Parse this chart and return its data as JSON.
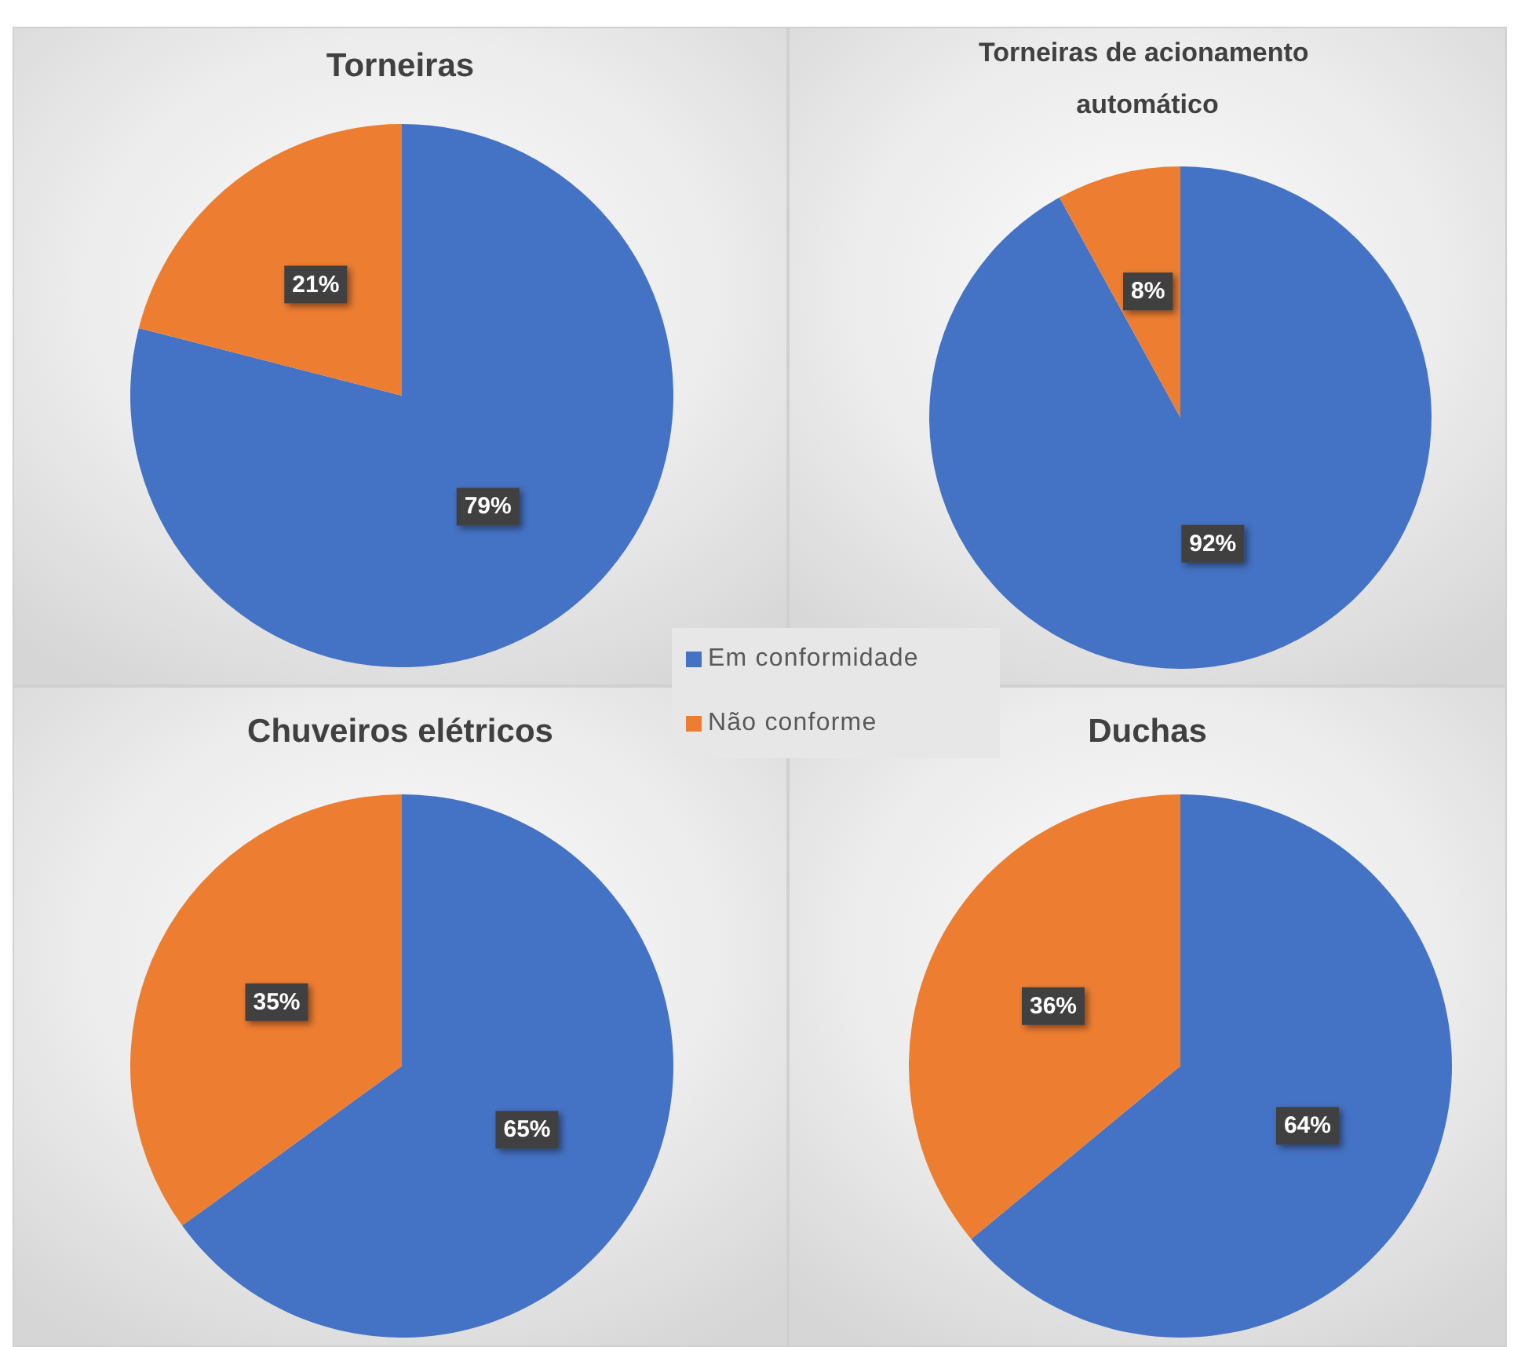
{
  "chart_data": [
    {
      "type": "pie",
      "title": "Torneiras",
      "categories": [
        "Em conformidade",
        "Não conforme"
      ],
      "values": [
        79,
        21
      ],
      "colors": [
        "#4472c4",
        "#ed7d31"
      ],
      "value_labels": [
        "79%",
        "21%"
      ],
      "legend": "bottom right"
    },
    {
      "type": "pie",
      "title": "Torneiras de acionamento automático",
      "categories": [
        null,
        null
      ],
      "values": [
        92,
        8
      ],
      "colors": [
        "#4472c4",
        "#ed7d31"
      ],
      "value_labels": [
        "92%",
        "8%"
      ]
    },
    {
      "type": "pie",
      "title": "Chuveiros elétricos",
      "categories": [
        null,
        null
      ],
      "values": [
        65,
        35
      ],
      "colors": [
        "#4472c4",
        "#ed7d31"
      ],
      "value_labels": [
        "65%",
        "35%"
      ]
    },
    {
      "type": "pie",
      "title": "Duchas",
      "categories": [
        null,
        null
      ],
      "values": [
        64,
        36
      ],
      "colors": [
        "#4472c4",
        "#ed7d31"
      ],
      "value_labels": [
        "64%",
        "36%"
      ]
    }
  ]
}
